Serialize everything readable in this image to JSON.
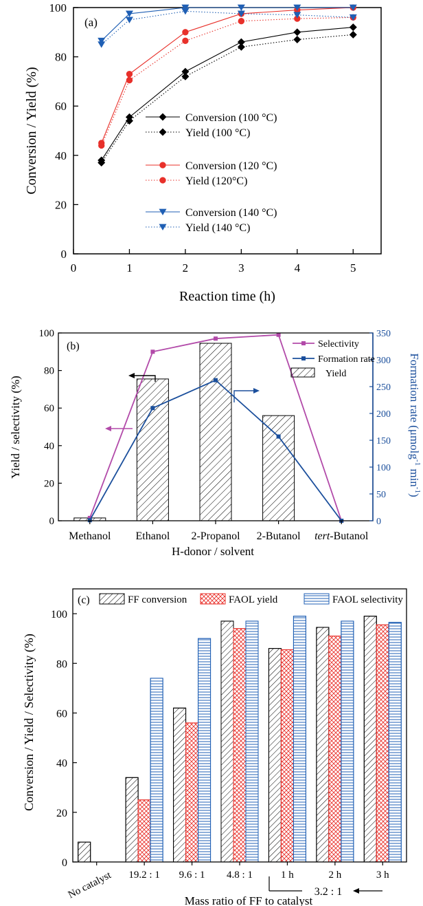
{
  "chart_data": [
    {
      "type": "line",
      "panel_label": "(a)",
      "xlabel": "Reaction time (h)",
      "ylabel": "Conversion / Yield (%)",
      "xlim": [
        0,
        5.5
      ],
      "ylim": [
        0,
        100
      ],
      "xticks": [
        0,
        1,
        2,
        3,
        4,
        5
      ],
      "yticks": [
        0,
        20,
        40,
        60,
        80,
        100
      ],
      "x": [
        0.5,
        1,
        2,
        3,
        4,
        5
      ],
      "legend_position": "center-right",
      "series": [
        {
          "name": "Conversion (100 °C)",
          "values": [
            38,
            55.5,
            74,
            86,
            90,
            92
          ],
          "color": "#000000",
          "marker": "diamond",
          "line": "solid"
        },
        {
          "name": "Yield (100 °C)",
          "values": [
            37,
            54,
            72,
            84,
            87,
            89
          ],
          "color": "#000000",
          "marker": "diamond",
          "line": "dotted"
        },
        {
          "name": "Conversion (120 °C)",
          "values": [
            45,
            73,
            90,
            97.5,
            99,
            100
          ],
          "color": "#e8302a",
          "marker": "circle",
          "line": "solid"
        },
        {
          "name": "Yield (120°C)",
          "values": [
            44,
            70.5,
            86.5,
            94.5,
            95.5,
            96
          ],
          "color": "#e8302a",
          "marker": "circle",
          "line": "dotted"
        },
        {
          "name": "Conversion (140 °C)",
          "values": [
            86.5,
            97.5,
            100,
            100,
            100,
            100
          ],
          "color": "#1f5fb4",
          "marker": "triangle-down",
          "line": "solid"
        },
        {
          "name": "Yield (140 °C)",
          "values": [
            85,
            95,
            98.5,
            97.5,
            97,
            96
          ],
          "color": "#1f5fb4",
          "marker": "triangle-down",
          "line": "dotted"
        }
      ]
    },
    {
      "type": "bar+line",
      "panel_label": "(b)",
      "xlabel": "H-donor / solvent",
      "ylabel": "Yield / selectivity (%)",
      "y2label": "Formation rate (μmolg",
      "y2label_sup1": "-1",
      "y2label_mid": " min",
      "y2label_sup2": "-1",
      "y2label_end": ")",
      "categories": [
        "Methanol",
        "Ethanol",
        "2-Propanol",
        "2-Butanol",
        "tert-Butanol"
      ],
      "ylim": [
        0,
        100
      ],
      "yticks": [
        0,
        20,
        40,
        60,
        80,
        100
      ],
      "y2lim": [
        0,
        350
      ],
      "y2ticks": [
        0,
        50,
        100,
        150,
        200,
        250,
        300,
        350
      ],
      "legend_position": "top-right",
      "series": [
        {
          "name": "Selectivity",
          "values": [
            1.5,
            90,
            97,
            99,
            0
          ],
          "axis": "left",
          "color": "#b24aa9",
          "marker": "square",
          "line": "solid"
        },
        {
          "name": "Formation rate",
          "values": [
            1,
            210,
            262,
            157,
            0
          ],
          "axis": "right",
          "color": "#1b4f9c",
          "marker": "square",
          "line": "solid"
        },
        {
          "name": "Yield",
          "values": [
            1.5,
            75.5,
            94.5,
            56,
            0
          ],
          "axis": "left",
          "kind": "bar",
          "pattern": "hatch"
        }
      ],
      "right_axis_color": "#1b4f9c"
    },
    {
      "type": "bar",
      "panel_label": "(c)",
      "xlabel": "Mass ratio of FF to catalyst",
      "ylabel": "Conversion / Yield / Selectivity (%)",
      "categories": [
        "No catalyst",
        "19.2 : 1",
        "9.6 : 1",
        "4.8 : 1",
        "1 h",
        "2 h",
        "3 h"
      ],
      "group_label": "3.2 : 1",
      "ylim": [
        0,
        110
      ],
      "yticks": [
        0,
        20,
        40,
        60,
        80,
        100
      ],
      "legend_position": "top",
      "series": [
        {
          "name": "FF conversion",
          "values": [
            8,
            34,
            62,
            97,
            86,
            94.5,
            99
          ],
          "color": "#000000",
          "pattern": "diagonal-hatch"
        },
        {
          "name": "FAOL yield",
          "values": [
            0,
            25,
            56,
            94,
            85.5,
            91,
            95.5
          ],
          "color": "#e8302a",
          "pattern": "crosshatch"
        },
        {
          "name": "FAOL selectivity",
          "values": [
            null,
            74,
            90,
            97,
            99,
            97,
            96.5
          ],
          "color": "#1f5fb4",
          "pattern": "horizontal-lines"
        }
      ]
    }
  ]
}
